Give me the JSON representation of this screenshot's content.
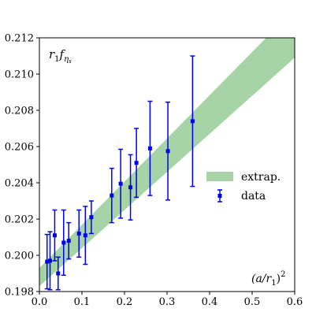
{
  "chart_data": {
    "type": "scatter",
    "title": "",
    "xlabel": "",
    "ylabel": "",
    "xlim": [
      0.0,
      0.6
    ],
    "ylim": [
      0.198,
      0.212
    ],
    "x_ticks": [
      "0.0",
      "0.1",
      "0.2",
      "0.3",
      "0.4",
      "0.5",
      "0.6"
    ],
    "y_ticks": [
      "0.198",
      "0.200",
      "0.202",
      "0.204",
      "0.206",
      "0.208",
      "0.210",
      "0.212"
    ],
    "grid": false,
    "legend_position": "right",
    "annotations": {
      "ylabel_main": "r",
      "ylabel_sub": "1",
      "ylabel_f": "f",
      "ylabel_sub2": "η",
      "ylabel_sub3": "s",
      "xlabel_main": "(a/r",
      "xlabel_sub": "1",
      "xlabel_end": ")",
      "xlabel_sup": "2"
    },
    "legend": [
      {
        "label": "extrap.",
        "kind": "band",
        "color": "#a6d4a6"
      },
      {
        "label": "data",
        "kind": "errorbar",
        "color": "#0000ee"
      }
    ],
    "band": {
      "name": "extrap.",
      "color": "#a6d4a6",
      "x": [
        0.0,
        0.6
      ],
      "lower": [
        0.1983,
        0.2109
      ],
      "upper": [
        0.1993,
        0.2136
      ]
    },
    "series": [
      {
        "name": "data",
        "color": "#0000ee",
        "points": [
          {
            "x": 0.018,
            "y": 0.19965,
            "err": 0.0015
          },
          {
            "x": 0.025,
            "y": 0.1997,
            "err": 0.0016
          },
          {
            "x": 0.036,
            "y": 0.2011,
            "err": 0.0014
          },
          {
            "x": 0.044,
            "y": 0.199,
            "err": 0.0009
          },
          {
            "x": 0.057,
            "y": 0.2007,
            "err": 0.0018
          },
          {
            "x": 0.069,
            "y": 0.2008,
            "err": 0.001
          },
          {
            "x": 0.093,
            "y": 0.2012,
            "err": 0.0013
          },
          {
            "x": 0.108,
            "y": 0.2011,
            "err": 0.0016
          },
          {
            "x": 0.122,
            "y": 0.2021,
            "err": 0.0009
          },
          {
            "x": 0.17,
            "y": 0.2033,
            "err": 0.0015
          },
          {
            "x": 0.191,
            "y": 0.20395,
            "err": 0.0019
          },
          {
            "x": 0.214,
            "y": 0.20375,
            "err": 0.0018
          },
          {
            "x": 0.228,
            "y": 0.2051,
            "err": 0.0019
          },
          {
            "x": 0.26,
            "y": 0.2059,
            "err": 0.0026
          },
          {
            "x": 0.302,
            "y": 0.20575,
            "err": 0.0027
          },
          {
            "x": 0.36,
            "y": 0.2074,
            "err": 0.0036
          }
        ]
      }
    ]
  }
}
